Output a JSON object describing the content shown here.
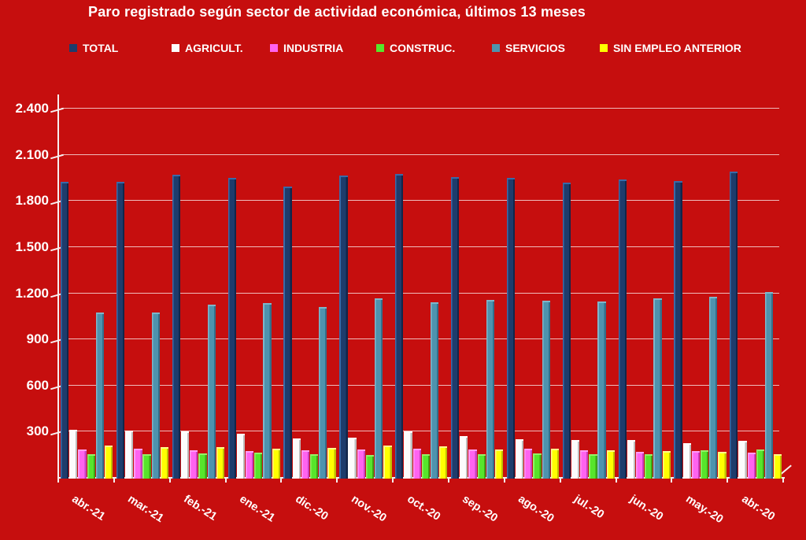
{
  "title": "Paro registrado según sector de actividad económica, últimos 13 meses",
  "colors": {
    "background": "#C60E0E",
    "text": "#FFFFFF",
    "gridline": "rgba(255,255,255,0.72)",
    "axis": "#F6EFEF"
  },
  "legend": [
    {
      "label": "TOTAL"
    },
    {
      "label": "AGRICULT."
    },
    {
      "label": "INDUSTRIA"
    },
    {
      "label": "CONSTRUC."
    },
    {
      "label": "SERVICIOS"
    },
    {
      "label": "SIN EMPLEO ANTERIOR"
    }
  ],
  "chart_data": {
    "type": "bar",
    "title": "Paro registrado según sector de actividad económica, últimos 13 meses",
    "categories": [
      "abr.-21",
      "mar.-21",
      "feb.-21",
      "ene.-21",
      "dic.-20",
      "nov.-20",
      "oct.-20",
      "sep.-20",
      "ago.-20",
      "jul.-20",
      "jun.-20",
      "may.-20",
      "abr.-20"
    ],
    "series": [
      {
        "name": "TOTAL",
        "color": "#1E3C6C",
        "color_light": "#3A6AA8",
        "color_dark": "#12264A",
        "values": [
          1920,
          1920,
          1965,
          1945,
          1890,
          1960,
          1970,
          1950,
          1945,
          1915,
          1935,
          1925,
          1985
        ]
      },
      {
        "name": "AGRICULT.",
        "color": "#FCFCFC",
        "color_light": "#FFFFFF",
        "color_dark": "#BDBDBD",
        "values": [
          305,
          300,
          295,
          280,
          250,
          255,
          295,
          265,
          245,
          240,
          240,
          220,
          235
        ]
      },
      {
        "name": "INDUSTRIA",
        "color": "#FF63F0",
        "color_light": "#FF9BF7",
        "color_dark": "#C940BE",
        "values": [
          180,
          185,
          175,
          170,
          175,
          180,
          185,
          180,
          185,
          175,
          165,
          170,
          160
        ]
      },
      {
        "name": "CONSTRUC.",
        "color": "#57E52B",
        "color_light": "#93F268",
        "color_dark": "#3BA417",
        "values": [
          150,
          150,
          155,
          160,
          150,
          145,
          150,
          150,
          155,
          150,
          150,
          175,
          180
        ]
      },
      {
        "name": "SERVICIOS",
        "color": "#4E93AE",
        "color_light": "#7EB6CA",
        "color_dark": "#336F8B",
        "values": [
          1070,
          1070,
          1120,
          1130,
          1105,
          1160,
          1135,
          1150,
          1145,
          1140,
          1160,
          1170,
          1205
        ]
      },
      {
        "name": "SIN EMPLEO ANTERIOR",
        "color": "#FFFF00",
        "color_light": "#FFFF8A",
        "color_dark": "#BFBF00",
        "values": [
          205,
          195,
          195,
          185,
          190,
          205,
          200,
          180,
          185,
          175,
          170,
          165,
          150
        ]
      }
    ],
    "yticks": [
      {
        "value": 2400,
        "label": "2.400"
      },
      {
        "value": 2100,
        "label": "2.100"
      },
      {
        "value": 1800,
        "label": "1.800"
      },
      {
        "value": 1500,
        "label": "1.500"
      },
      {
        "value": 1200,
        "label": "1.200"
      },
      {
        "value": 900,
        "label": "900"
      },
      {
        "value": 600,
        "label": "600"
      },
      {
        "value": 300,
        "label": "300"
      }
    ],
    "ylim": [
      0,
      2550
    ],
    "grid": true,
    "legend_position": "top"
  }
}
